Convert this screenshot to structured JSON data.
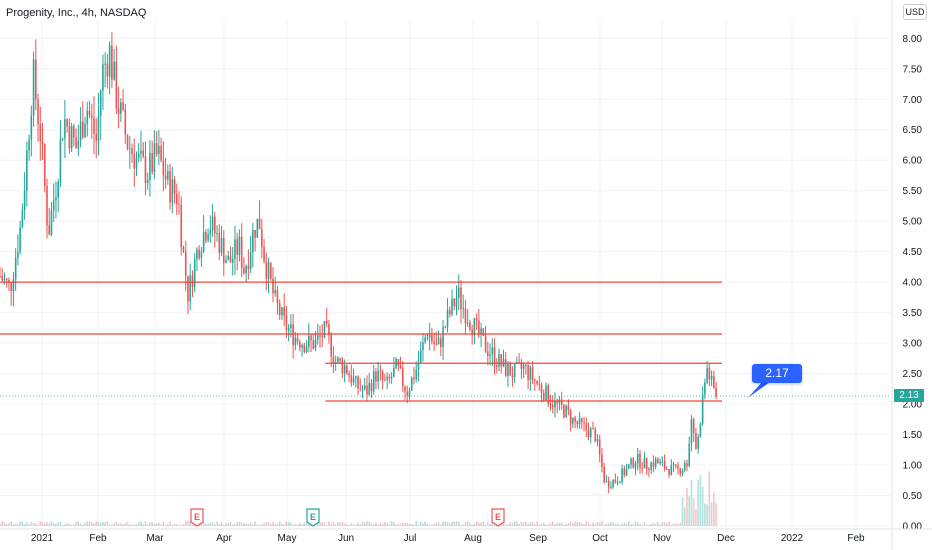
{
  "header": {
    "title": "Progenity, Inc., 4h, NASDAQ",
    "currency": "USD"
  },
  "last_price_label": "2.13",
  "callout_label": "2.17",
  "colors": {
    "up": "#26a69a",
    "down": "#ef5350",
    "level": "#f44336",
    "grid": "#f0f3fa",
    "callout": "#2962ff"
  },
  "chart_data": {
    "type": "candlestick",
    "title": "Progenity, Inc., 4h, NASDAQ",
    "ylim": [
      0,
      8.3
    ],
    "y_ticks": [
      "8.00",
      "7.50",
      "7.00",
      "6.50",
      "6.00",
      "5.50",
      "5.00",
      "4.50",
      "4.00",
      "3.50",
      "3.00",
      "2.50",
      "2.00",
      "1.50",
      "1.00",
      "0.50",
      "0.00"
    ],
    "x_ticks": [
      "2021",
      "Feb",
      "Mar",
      "Apr",
      "May",
      "Jun",
      "Jul",
      "Aug",
      "Sep",
      "Oct",
      "Nov",
      "Dec",
      "2022",
      "Feb"
    ],
    "price_path": [
      [
        0.0,
        4.1
      ],
      [
        0.02,
        3.9
      ],
      [
        0.04,
        4.9
      ],
      [
        0.05,
        5.8
      ],
      [
        0.065,
        7.4
      ],
      [
        0.08,
        6.4
      ],
      [
        0.095,
        4.8
      ],
      [
        0.11,
        5.6
      ],
      [
        0.125,
        6.7
      ],
      [
        0.15,
        6.2
      ],
      [
        0.17,
        6.9
      ],
      [
        0.19,
        6.3
      ],
      [
        0.2,
        7.4
      ],
      [
        0.215,
        7.8
      ],
      [
        0.23,
        7.0
      ],
      [
        0.25,
        6.3
      ],
      [
        0.27,
        6.0
      ],
      [
        0.29,
        5.8
      ],
      [
        0.31,
        6.1
      ],
      [
        0.33,
        5.6
      ],
      [
        0.35,
        5.4
      ],
      [
        0.36,
        4.5
      ],
      [
        0.37,
        3.8
      ],
      [
        0.39,
        4.6
      ],
      [
        0.41,
        5.0
      ],
      [
        0.43,
        4.7
      ],
      [
        0.45,
        4.3
      ],
      [
        0.47,
        4.6
      ],
      [
        0.48,
        4.2
      ],
      [
        0.49,
        4.5
      ],
      [
        0.5,
        4.9
      ],
      [
        0.51,
        5.0
      ],
      [
        0.52,
        4.4
      ],
      [
        0.54,
        3.7
      ],
      [
        0.56,
        3.3
      ],
      [
        0.58,
        3.1
      ],
      [
        0.6,
        3.0
      ],
      [
        0.62,
        3.0
      ],
      [
        0.64,
        3.2
      ],
      [
        0.66,
        2.7
      ],
      [
        0.68,
        2.6
      ],
      [
        0.7,
        2.3
      ],
      [
        0.72,
        2.2
      ],
      [
        0.74,
        2.5
      ],
      [
        0.76,
        2.3
      ],
      [
        0.78,
        2.6
      ],
      [
        0.8,
        2.2
      ],
      [
        0.82,
        2.6
      ],
      [
        0.84,
        3.2
      ],
      [
        0.86,
        2.9
      ],
      [
        0.88,
        3.4
      ],
      [
        0.9,
        3.8
      ],
      [
        0.91,
        3.6
      ],
      [
        0.93,
        3.3
      ],
      [
        0.95,
        3.0
      ],
      [
        0.97,
        2.8
      ],
      [
        0.99,
        2.6
      ],
      [
        1.01,
        2.5
      ],
      [
        1.03,
        2.6
      ],
      [
        1.05,
        2.4
      ],
      [
        1.07,
        2.2
      ],
      [
        1.09,
        2.0
      ],
      [
        1.11,
        1.9
      ],
      [
        1.13,
        1.7
      ],
      [
        1.15,
        1.6
      ],
      [
        1.17,
        1.5
      ],
      [
        1.19,
        0.7
      ],
      [
        1.21,
        0.75
      ],
      [
        1.23,
        0.9
      ],
      [
        1.25,
        1.1
      ],
      [
        1.27,
        1.0
      ],
      [
        1.29,
        1.05
      ],
      [
        1.31,
        0.95
      ],
      [
        1.33,
        0.9
      ],
      [
        1.35,
        1.0
      ],
      [
        1.36,
        1.8
      ],
      [
        1.37,
        1.2
      ],
      [
        1.38,
        2.0
      ],
      [
        1.39,
        2.6
      ],
      [
        1.4,
        2.3
      ],
      [
        1.41,
        2.13
      ]
    ],
    "levels": [
      {
        "price": 4.0,
        "from": 0.0,
        "to": 1.6
      },
      {
        "price": 3.15,
        "from": 0.0,
        "to": 1.6
      },
      {
        "price": 2.67,
        "from": 0.64,
        "to": 1.6
      },
      {
        "price": 2.05,
        "from": 0.64,
        "to": 1.6
      }
    ],
    "earnings_events": [
      {
        "label": "E",
        "t": 0.437,
        "style": "red"
      },
      {
        "label": "E",
        "t": 0.689,
        "style": "green"
      },
      {
        "label": "E",
        "t": 1.1,
        "style": "red"
      }
    ],
    "last_price": 2.13,
    "callout": {
      "label": "2.17",
      "price": 2.17,
      "t": 1.65
    }
  }
}
